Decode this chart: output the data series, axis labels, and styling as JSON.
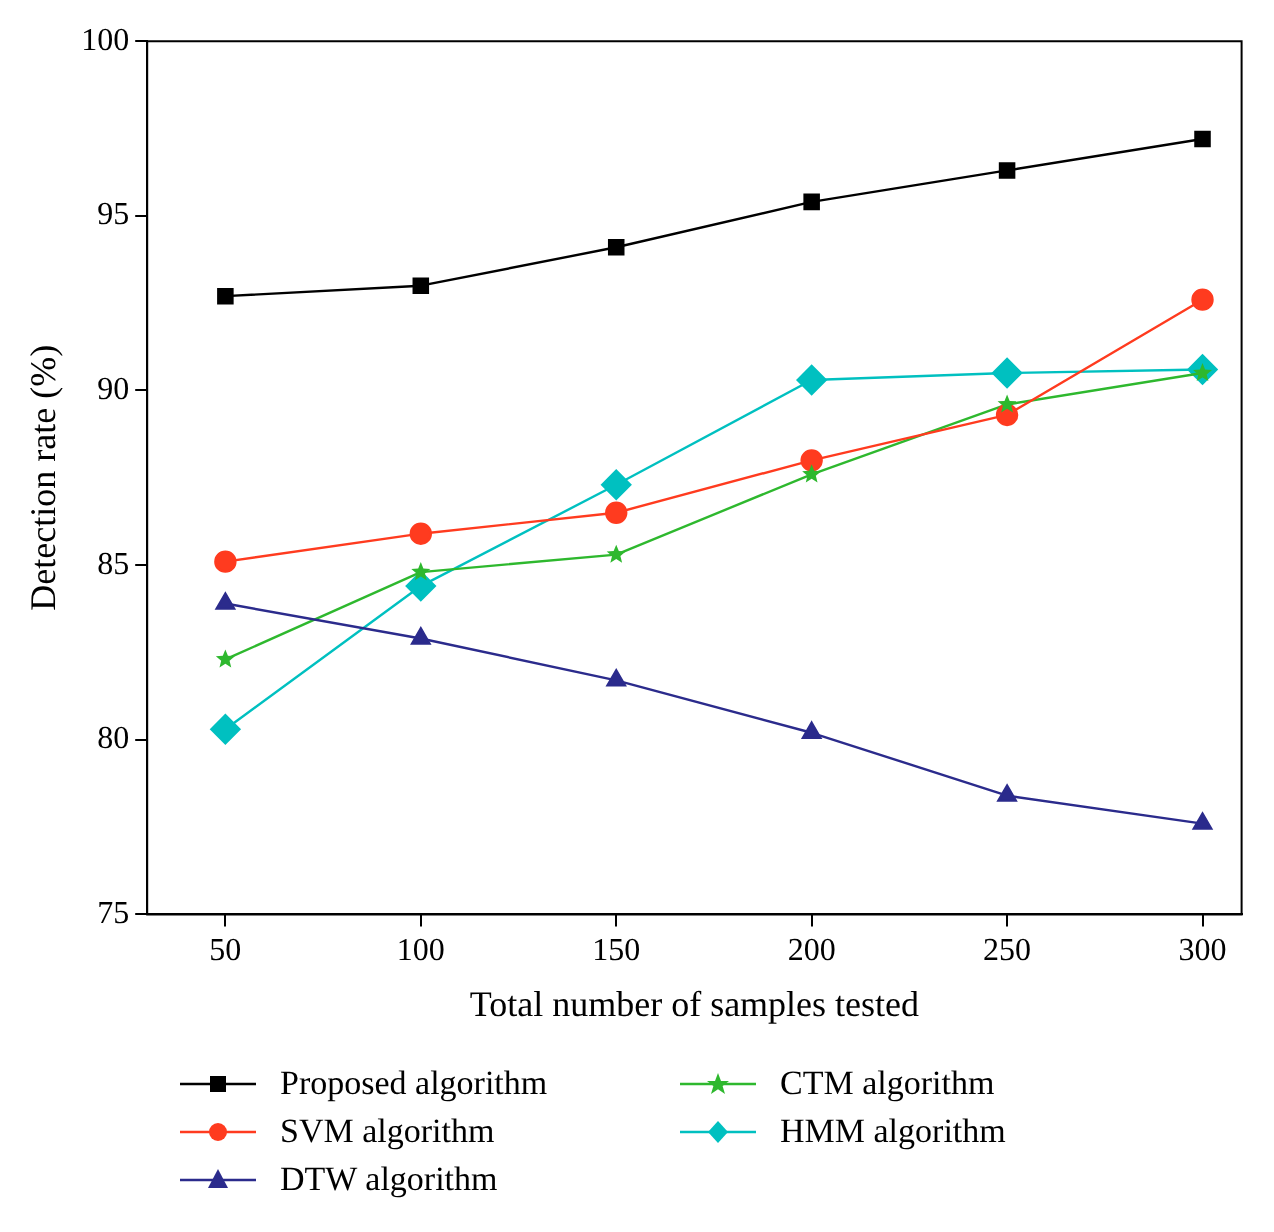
{
  "chart_data": {
    "type": "line",
    "xlabel": "Total number of samples tested",
    "ylabel": "Detection rate (%)",
    "x": [
      50,
      100,
      150,
      200,
      250,
      300
    ],
    "xlim": [
      30,
      310
    ],
    "xticks": [
      50,
      100,
      150,
      200,
      250,
      300
    ],
    "ylim": [
      75,
      100
    ],
    "yticks": [
      75,
      80,
      85,
      90,
      95,
      100
    ],
    "grid": false,
    "legend": "bottom",
    "line_style": "solid",
    "series": [
      {
        "name": "Proposed algorithm",
        "color": "#000000",
        "marker": "square",
        "values": [
          92.7,
          93.0,
          94.1,
          95.4,
          96.3,
          97.2
        ]
      },
      {
        "name": "SVM algorithm",
        "color": "#ff3b1f",
        "marker": "circle",
        "values": [
          85.1,
          85.9,
          86.5,
          88.0,
          89.3,
          92.6
        ]
      },
      {
        "name": "DTW algorithm",
        "color": "#2b2b8c",
        "marker": "triangle",
        "values": [
          83.9,
          82.9,
          81.7,
          80.2,
          78.4,
          77.6
        ]
      },
      {
        "name": "CTM algorithm",
        "color": "#2eb82e",
        "marker": "star",
        "values": [
          82.3,
          84.8,
          85.3,
          87.6,
          89.6,
          90.5
        ]
      },
      {
        "name": "HMM algorithm",
        "color": "#00c0c0",
        "marker": "diamond",
        "values": [
          80.3,
          84.4,
          87.3,
          90.3,
          90.5,
          90.6
        ]
      }
    ]
  }
}
